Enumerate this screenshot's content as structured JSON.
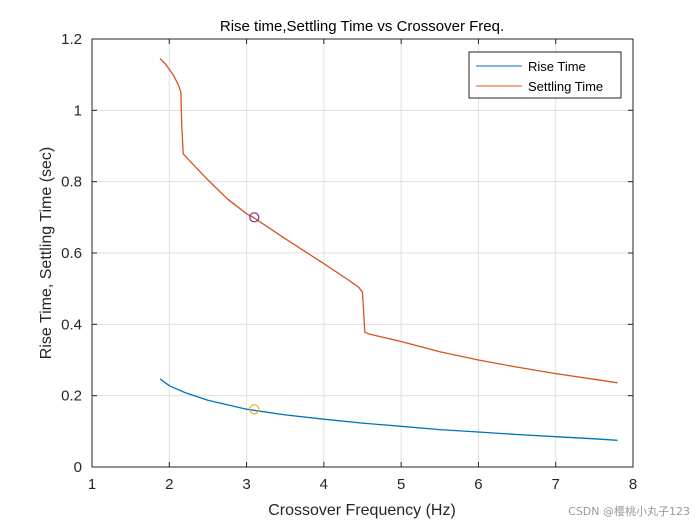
{
  "chart_data": {
    "type": "line",
    "title": "Rise time,Settling Time vs Crossover Freq.",
    "xlabel": "Crossover Frequency (Hz)",
    "ylabel": "Rise Time,  Settling Time (sec)",
    "xlim": [
      1,
      8
    ],
    "ylim": [
      0,
      1.2
    ],
    "xticks": [
      1,
      2,
      3,
      4,
      5,
      6,
      7,
      8
    ],
    "yticks": [
      0,
      0.2,
      0.4,
      0.6,
      0.8,
      1,
      1.2
    ],
    "ytick_labels": [
      "0",
      "0.2",
      "0.4",
      "0.6",
      "0.8",
      "1",
      "1.2"
    ],
    "grid": true,
    "legend_position": "top-right",
    "series": [
      {
        "name": "Rise Time",
        "color": "#0072BD",
        "x": [
          1.88,
          2.0,
          2.2,
          2.5,
          3.0,
          3.5,
          4.0,
          4.5,
          5.0,
          5.5,
          6.0,
          6.5,
          7.0,
          7.5,
          7.8
        ],
        "y": [
          0.247,
          0.228,
          0.209,
          0.187,
          0.162,
          0.146,
          0.134,
          0.123,
          0.114,
          0.105,
          0.098,
          0.091,
          0.085,
          0.079,
          0.075
        ]
      },
      {
        "name": "Settling Time",
        "color": "#D95319",
        "x": [
          1.88,
          1.95,
          2.05,
          2.12,
          2.15,
          2.16,
          2.18,
          2.3,
          2.5,
          2.75,
          3.0,
          3.1,
          3.5,
          4.0,
          4.3,
          4.45,
          4.5,
          4.53,
          4.6,
          5.0,
          5.5,
          6.0,
          6.5,
          7.0,
          7.5,
          7.8
        ],
        "y": [
          1.145,
          1.13,
          1.1,
          1.07,
          1.05,
          0.96,
          0.878,
          0.85,
          0.805,
          0.752,
          0.71,
          0.698,
          0.64,
          0.57,
          0.527,
          0.504,
          0.49,
          0.378,
          0.372,
          0.352,
          0.323,
          0.3,
          0.28,
          0.262,
          0.246,
          0.236
        ]
      }
    ],
    "markers": [
      {
        "name": "settling-marker",
        "x": 3.1,
        "y": 0.7,
        "color": "#7E2F8E"
      },
      {
        "name": "rise-marker",
        "x": 3.1,
        "y": 0.162,
        "color": "#EDB120"
      }
    ]
  },
  "watermark": "CSDN @樱桃小丸子123"
}
